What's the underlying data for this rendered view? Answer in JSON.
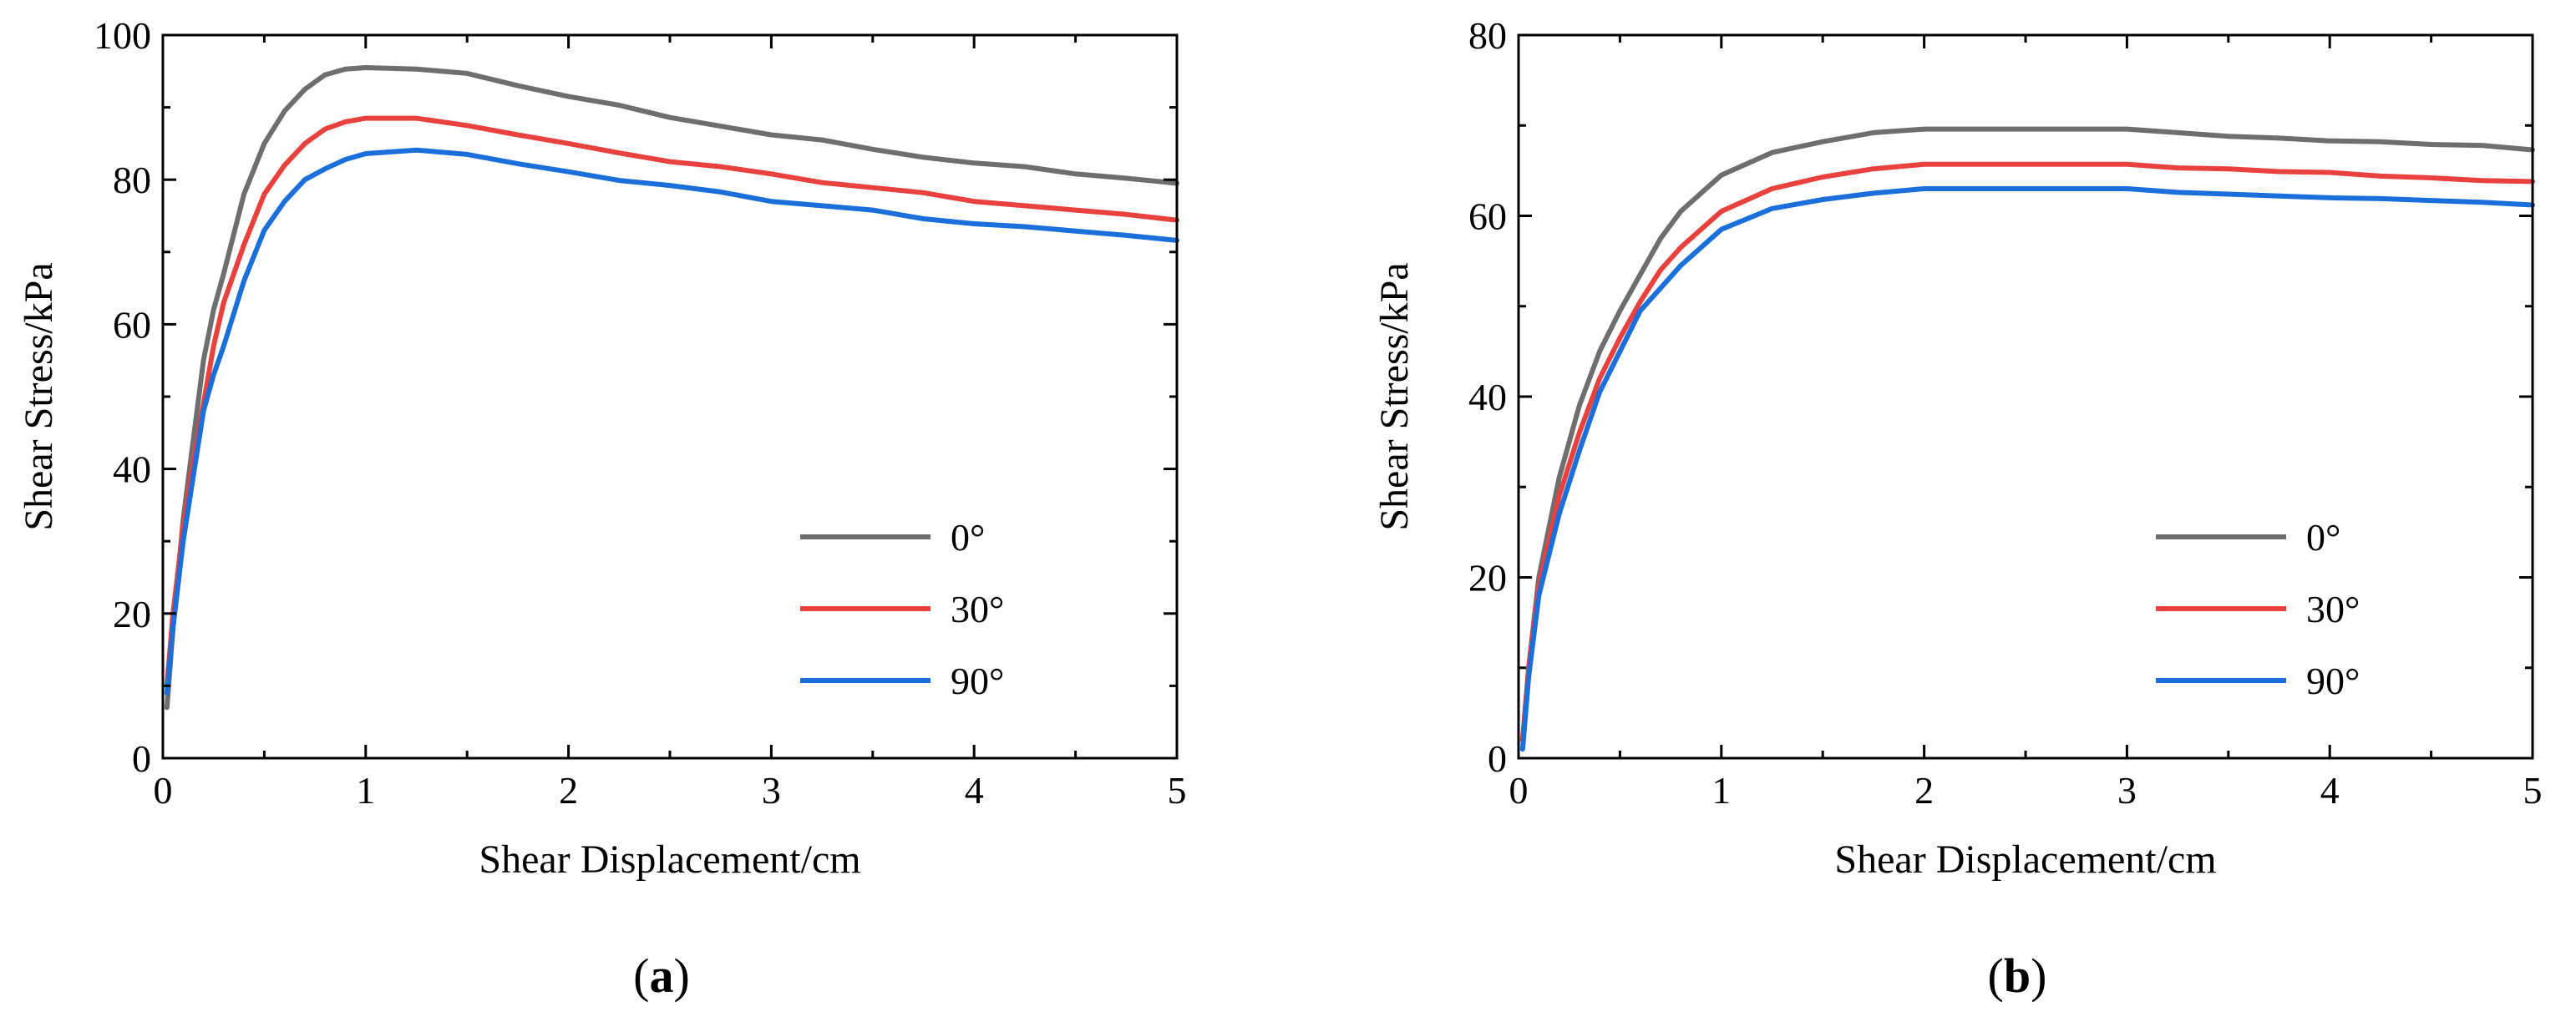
{
  "chart_data": [
    {
      "type": "line",
      "panel_label": "a",
      "xlabel": "Shear Displacement/cm",
      "ylabel": "Shear Stress/kPa",
      "xlim": [
        0,
        5
      ],
      "ylim": [
        0,
        100
      ],
      "xticks": [
        0,
        1,
        2,
        3,
        4,
        5
      ],
      "yticks": [
        0,
        20,
        40,
        60,
        80,
        100
      ],
      "legend_position": "bottom-right",
      "series": [
        {
          "name": "0°",
          "color": "#6e6e6e",
          "x": [
            0.02,
            0.05,
            0.1,
            0.15,
            0.2,
            0.25,
            0.3,
            0.4,
            0.5,
            0.6,
            0.7,
            0.8,
            0.9,
            1.0,
            1.25,
            1.5,
            1.75,
            2.0,
            2.25,
            2.5,
            2.75,
            3.0,
            3.25,
            3.5,
            3.75,
            4.0,
            4.25,
            4.5,
            4.75,
            5.0
          ],
          "y": [
            7,
            18,
            33,
            44,
            55,
            62,
            67,
            78,
            85,
            89.5,
            92.5,
            94.5,
            95.3,
            95.5,
            95.3,
            94.7,
            93,
            91.5,
            90.3,
            88.6,
            87.4,
            86.2,
            85.5,
            84.2,
            83.1,
            82.3,
            81.8,
            80.8,
            80.2,
            79.5
          ]
        },
        {
          "name": "30°",
          "color": "#e8413e",
          "x": [
            0.02,
            0.05,
            0.1,
            0.15,
            0.2,
            0.25,
            0.3,
            0.4,
            0.5,
            0.6,
            0.7,
            0.8,
            0.9,
            1.0,
            1.25,
            1.5,
            1.75,
            2.0,
            2.25,
            2.5,
            2.75,
            3.0,
            3.25,
            3.5,
            3.75,
            4.0,
            4.25,
            4.5,
            4.75,
            5.0
          ],
          "y": [
            10,
            20,
            32,
            41,
            49,
            57,
            63,
            71,
            78,
            82,
            85,
            87,
            88,
            88.5,
            88.5,
            87.5,
            86.2,
            85,
            83.7,
            82.5,
            81.8,
            80.8,
            79.6,
            78.9,
            78.2,
            77,
            76.4,
            75.8,
            75.2,
            74.4
          ]
        },
        {
          "name": "90°",
          "color": "#1a6fdb",
          "x": [
            0.02,
            0.05,
            0.1,
            0.15,
            0.2,
            0.25,
            0.3,
            0.4,
            0.5,
            0.6,
            0.7,
            0.8,
            0.9,
            1.0,
            1.25,
            1.5,
            1.75,
            2.0,
            2.25,
            2.5,
            2.75,
            3.0,
            3.25,
            3.5,
            3.75,
            4.0,
            4.25,
            4.5,
            4.75,
            5.0
          ],
          "y": [
            9,
            18,
            30,
            39,
            48,
            53,
            57,
            66,
            73,
            77,
            80,
            81.5,
            82.8,
            83.6,
            84.1,
            83.5,
            82.2,
            81.1,
            79.9,
            79.2,
            78.3,
            77,
            76.4,
            75.8,
            74.6,
            73.9,
            73.5,
            72.9,
            72.3,
            71.6
          ]
        }
      ]
    },
    {
      "type": "line",
      "panel_label": "b",
      "xlabel": "Shear Displacement/cm",
      "ylabel": "Shear Stress/kPa",
      "xlim": [
        0,
        5
      ],
      "ylim": [
        0,
        80
      ],
      "xticks": [
        0,
        1,
        2,
        3,
        4,
        5
      ],
      "yticks": [
        0,
        20,
        40,
        60,
        80
      ],
      "legend_position": "bottom-right",
      "series": [
        {
          "name": "0°",
          "color": "#6e6e6e",
          "x": [
            0.02,
            0.05,
            0.1,
            0.2,
            0.3,
            0.4,
            0.5,
            0.6,
            0.7,
            0.8,
            0.9,
            1.0,
            1.25,
            1.5,
            1.75,
            2.0,
            2.25,
            2.5,
            2.75,
            3.0,
            3.25,
            3.5,
            3.75,
            4.0,
            4.25,
            4.5,
            4.75,
            5.0
          ],
          "y": [
            2,
            10,
            20,
            31,
            39,
            45,
            49.5,
            53.5,
            57.5,
            60.5,
            62.5,
            64.5,
            67,
            68.2,
            69.2,
            69.6,
            69.6,
            69.6,
            69.6,
            69.6,
            69.2,
            68.8,
            68.6,
            68.3,
            68.2,
            67.9,
            67.8,
            67.3
          ]
        },
        {
          "name": "30°",
          "color": "#e8413e",
          "x": [
            0.02,
            0.05,
            0.1,
            0.2,
            0.3,
            0.4,
            0.5,
            0.6,
            0.7,
            0.8,
            0.9,
            1.0,
            1.25,
            1.5,
            1.75,
            2.0,
            2.25,
            2.5,
            2.75,
            3.0,
            3.25,
            3.5,
            3.75,
            4.0,
            4.25,
            4.5,
            4.75,
            5.0
          ],
          "y": [
            2,
            10,
            19,
            29,
            36,
            42,
            46.5,
            50.5,
            54,
            56.5,
            58.5,
            60.5,
            63,
            64.3,
            65.2,
            65.7,
            65.7,
            65.7,
            65.7,
            65.7,
            65.3,
            65.2,
            64.9,
            64.8,
            64.4,
            64.2,
            63.9,
            63.8
          ]
        },
        {
          "name": "90°",
          "color": "#1a6fdb",
          "x": [
            0.02,
            0.05,
            0.1,
            0.2,
            0.3,
            0.4,
            0.5,
            0.6,
            0.7,
            0.8,
            0.9,
            1.0,
            1.25,
            1.5,
            1.75,
            2.0,
            2.25,
            2.5,
            2.75,
            3.0,
            3.25,
            3.5,
            3.75,
            4.0,
            4.25,
            4.5,
            4.75,
            5.0
          ],
          "y": [
            1,
            9,
            18,
            27,
            34,
            40.5,
            45,
            49.5,
            52,
            54.5,
            56.5,
            58.5,
            60.8,
            61.8,
            62.5,
            63,
            63,
            63,
            63,
            63,
            62.6,
            62.4,
            62.2,
            62,
            61.9,
            61.7,
            61.5,
            61.2
          ]
        }
      ]
    }
  ]
}
